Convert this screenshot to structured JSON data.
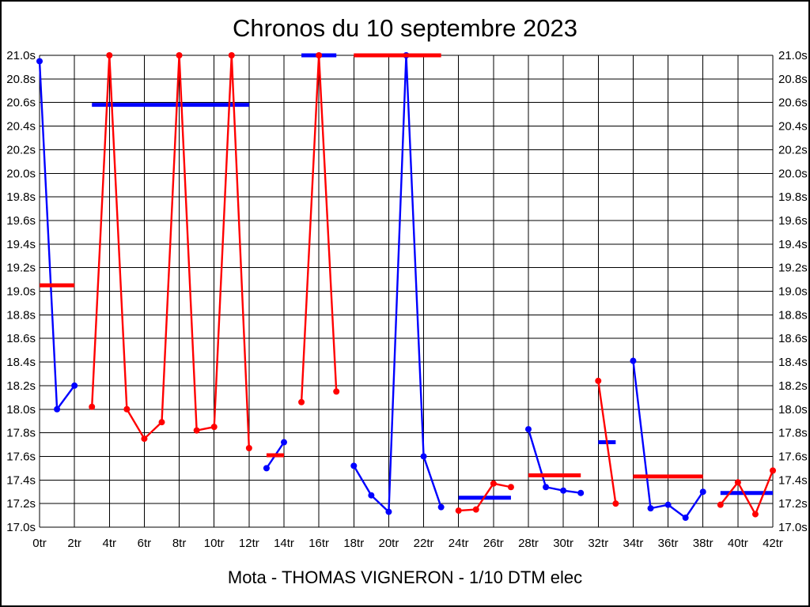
{
  "window": {
    "background": "#ffffff",
    "border_color": "#000000"
  },
  "chart_data": {
    "type": "line",
    "title": "Chronos du 10 septembre 2023",
    "footer": "Mota - THOMAS VIGNERON - 1/10 DTM elec",
    "grid": true,
    "legend": "none",
    "x_axis": {
      "unit_suffix": "tr",
      "min": 0,
      "max": 42,
      "tick_step": 2,
      "tick_labels": [
        "0tr",
        "2tr",
        "4tr",
        "6tr",
        "8tr",
        "10tr",
        "12tr",
        "14tr",
        "16tr",
        "18tr",
        "20tr",
        "22tr",
        "24tr",
        "26tr",
        "28tr",
        "30tr",
        "32tr",
        "34tr",
        "36tr",
        "38tr",
        "40tr",
        "42tr"
      ]
    },
    "y_axis": {
      "unit_suffix": "s",
      "min": 17.0,
      "max": 21.0,
      "tick_step": 0.2,
      "labels_on_both_sides": true,
      "tick_labels": [
        "21.0s",
        "20.8s",
        "20.6s",
        "20.4s",
        "20.2s",
        "20.0s",
        "19.8s",
        "19.6s",
        "19.4s",
        "19.2s",
        "19.0s",
        "18.8s",
        "18.6s",
        "18.4s",
        "18.2s",
        "18.0s",
        "17.8s",
        "17.6s",
        "17.4s",
        "17.2s",
        "17.0s"
      ]
    },
    "series_colors": {
      "blue": "#0000ff",
      "red": "#ff0000"
    },
    "clip_note": "lap times above 21.0s are clipped at the chart top (dots shown at 21.0s)",
    "stints": [
      {
        "laps": [
          0,
          1,
          2
        ],
        "values": [
          20.95,
          18.0,
          18.2
        ],
        "color": "blue",
        "avg": 19.05,
        "avg_color": "red",
        "avg_is_clipped": false,
        "clipped_laps": []
      },
      {
        "laps": [
          3,
          4,
          5,
          6,
          7,
          8,
          9,
          10,
          11,
          12
        ],
        "values": [
          18.02,
          21.0,
          18.0,
          17.75,
          17.89,
          21.0,
          17.82,
          17.85,
          21.0,
          17.67
        ],
        "color": "red",
        "avg": 20.58,
        "avg_color": "blue",
        "avg_is_clipped": false,
        "clipped_laps": [
          4,
          8,
          11
        ]
      },
      {
        "laps": [
          13,
          14
        ],
        "values": [
          17.5,
          17.72
        ],
        "color": "blue",
        "avg": 17.61,
        "avg_color": "red",
        "avg_is_clipped": false,
        "clipped_laps": []
      },
      {
        "laps": [
          15,
          16,
          17
        ],
        "values": [
          18.06,
          21.0,
          18.15
        ],
        "color": "red",
        "avg": 21.0,
        "avg_color": "blue",
        "avg_is_clipped": true,
        "clipped_laps": [
          16
        ]
      },
      {
        "laps": [
          18,
          19,
          20,
          21,
          22,
          23
        ],
        "values": [
          17.52,
          17.27,
          17.13,
          21.0,
          17.6,
          17.17
        ],
        "color": "blue",
        "avg": 21.0,
        "avg_color": "red",
        "avg_is_clipped": true,
        "clipped_laps": [
          21
        ]
      },
      {
        "laps": [
          24,
          25,
          26,
          27
        ],
        "values": [
          17.14,
          17.15,
          17.37,
          17.34
        ],
        "color": "red",
        "avg": 17.25,
        "avg_color": "blue",
        "avg_is_clipped": false,
        "clipped_laps": []
      },
      {
        "laps": [
          28,
          29,
          30,
          31
        ],
        "values": [
          17.83,
          17.34,
          17.31,
          17.29
        ],
        "color": "blue",
        "avg": 17.44,
        "avg_color": "red",
        "avg_is_clipped": false,
        "clipped_laps": []
      },
      {
        "laps": [
          32,
          33
        ],
        "values": [
          18.24,
          17.2
        ],
        "color": "red",
        "avg": 17.72,
        "avg_color": "blue",
        "avg_is_clipped": false,
        "clipped_laps": []
      },
      {
        "laps": [
          34,
          35,
          36,
          37,
          38
        ],
        "values": [
          18.41,
          17.16,
          17.19,
          17.08,
          17.3
        ],
        "color": "blue",
        "avg": 17.43,
        "avg_color": "red",
        "avg_is_clipped": false,
        "clipped_laps": []
      },
      {
        "laps": [
          39,
          40,
          41,
          42
        ],
        "values": [
          17.19,
          17.38,
          17.11,
          17.48
        ],
        "color": "red",
        "avg": 17.29,
        "avg_color": "blue",
        "avg_is_clipped": false,
        "clipped_laps": []
      }
    ]
  }
}
